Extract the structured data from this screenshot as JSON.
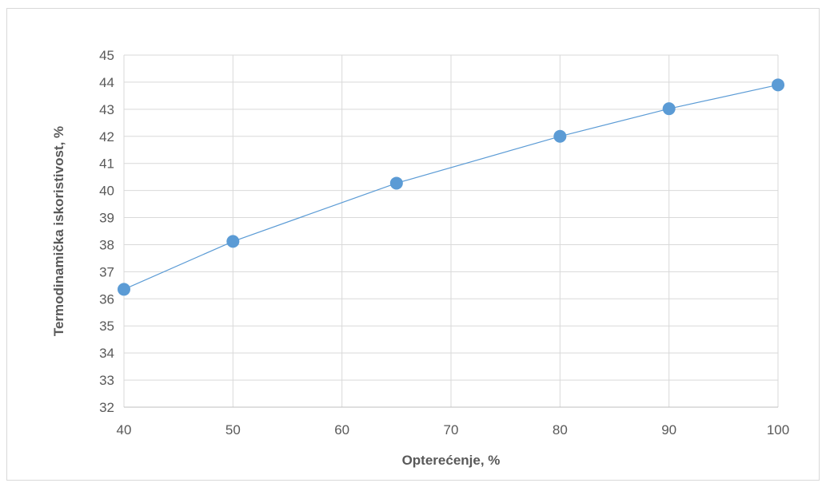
{
  "chart_data": {
    "type": "line",
    "title": "",
    "xlabel": "Opterećenje, %",
    "ylabel": "Termodinamička iskoristivost, %",
    "xlim": [
      40,
      100
    ],
    "ylim": [
      32,
      45
    ],
    "xticks": [
      40,
      50,
      60,
      70,
      80,
      90,
      100
    ],
    "yticks": [
      32,
      33,
      34,
      35,
      36,
      37,
      38,
      39,
      40,
      41,
      42,
      43,
      44,
      45
    ],
    "grid": true,
    "legend": "none",
    "series": [
      {
        "color": "#5b9bd5",
        "marker": "circle",
        "x": [
          40,
          50,
          65,
          80,
          90,
          100
        ],
        "y": [
          36.35,
          38.12,
          40.27,
          42.0,
          43.02,
          43.9
        ]
      }
    ]
  }
}
